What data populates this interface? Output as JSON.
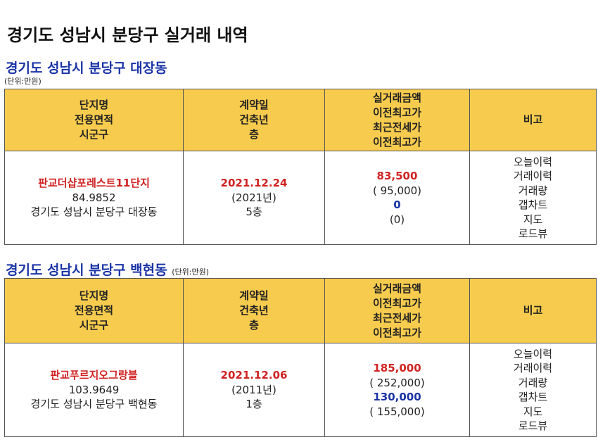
{
  "page_title": "경기도 성남시 분당구 실거래 내역",
  "sections": [
    {
      "title": "경기도 성남시 분당구 대장동",
      "unit": "(단위:만원)",
      "headers": {
        "col1": [
          "단지명",
          "전용면적",
          "시군구"
        ],
        "col2": [
          "계약일",
          "건축년",
          "층"
        ],
        "col3": [
          "실거래금액",
          "이전최고가",
          "최근전세가",
          "이전최고가"
        ],
        "col4": [
          "비고"
        ]
      },
      "row": {
        "complex": "판교더샵포레스트11단지",
        "area": "84.9852",
        "district": "경기도 성남시 분당구 대장동",
        "contract_date": "2021.12.24",
        "build_year": "(2021년)",
        "floor": "5층",
        "price": "83,500",
        "prev_high": "( 95,000)",
        "jeonse": "0",
        "jeonse_prev_high": "(0)",
        "links": [
          "오늘이력",
          "거래이력",
          "거래량",
          "갭차트",
          "지도",
          "로드뷰"
        ]
      }
    },
    {
      "title": "경기도 성남시 분당구 백현동",
      "unit": "(단위:만원)",
      "headers": {
        "col1": [
          "단지명",
          "전용면적",
          "시군구"
        ],
        "col2": [
          "계약일",
          "건축년",
          "층"
        ],
        "col3": [
          "실거래금액",
          "이전최고가",
          "최근전세가",
          "이전최고가"
        ],
        "col4": [
          "비고"
        ]
      },
      "row": {
        "complex": "판교푸르지오그랑블",
        "area": "103.9649",
        "district": "경기도 성남시 분당구 백현동",
        "contract_date": "2021.12.06",
        "build_year": "(2011년)",
        "floor": "1층",
        "price": "185,000",
        "prev_high": "( 252,000)",
        "jeonse": "130,000",
        "jeonse_prev_high": "( 155,000)",
        "links": [
          "오늘이력",
          "거래이력",
          "거래량",
          "갭차트",
          "지도",
          "로드뷰"
        ]
      }
    }
  ],
  "colors": {
    "header_bg": "#f7cb4d",
    "section_title": "#1a33a6",
    "price_red": "#d02222",
    "jeonse_blue": "#1a33a6"
  }
}
